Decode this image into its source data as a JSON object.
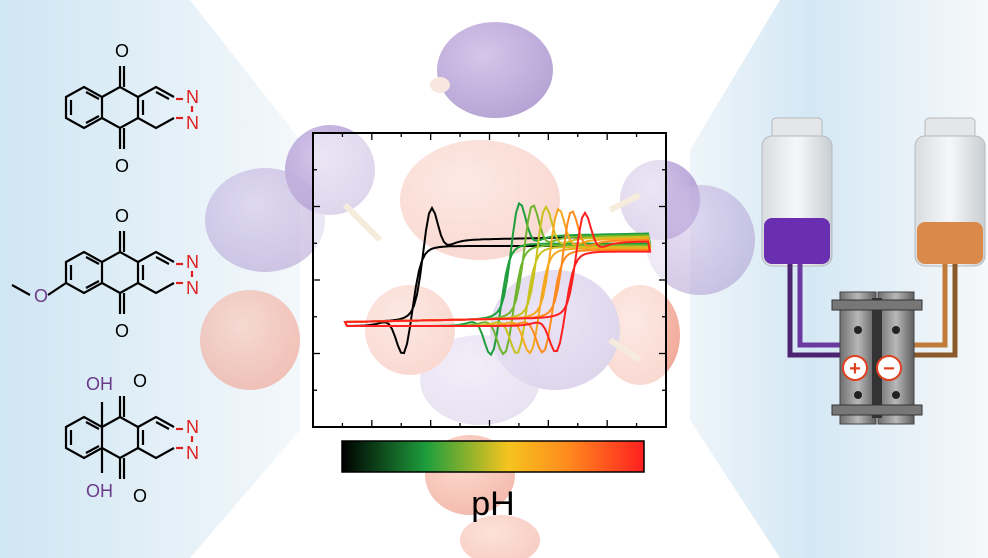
{
  "molecules": [
    {
      "substituent": "",
      "heteroatoms": [
        "N",
        "N"
      ]
    },
    {
      "substituent": "",
      "heteroatoms": [
        "N",
        "N"
      ]
    },
    {
      "substituent": "OH",
      "heteroatoms": [
        "N",
        "N"
      ]
    }
  ],
  "atoms": {
    "oxygen": "O",
    "nitrogen": "N",
    "hydroxyl": "OH"
  },
  "colorbar": {
    "label": "pH",
    "stops": [
      "#000000",
      "#1e9e3c",
      "#f5c41e",
      "#ff8a1e",
      "#ff2020"
    ]
  },
  "chart_data": {
    "type": "line",
    "title": "",
    "xlabel": "",
    "ylabel": "",
    "series": [
      {
        "color": "#000000"
      },
      {
        "color": "#1e9e3c"
      },
      {
        "color": "#6fb42e"
      },
      {
        "color": "#c8c21e"
      },
      {
        "color": "#f5a81e"
      },
      {
        "color": "#ff8a1e"
      },
      {
        "color": "#ff2020"
      }
    ]
  },
  "flow_battery": {
    "positive_label": "+",
    "negative_label": "−",
    "left_electrolyte_color": "#6a2fb0",
    "right_electrolyte_color": "#d98a4a"
  },
  "colors": {
    "orbital_purple": "#b9a3d8",
    "orbital_orange": "#f4a896",
    "nitrogen": "#e02020",
    "hydroxyl": "#6b3a8a"
  }
}
